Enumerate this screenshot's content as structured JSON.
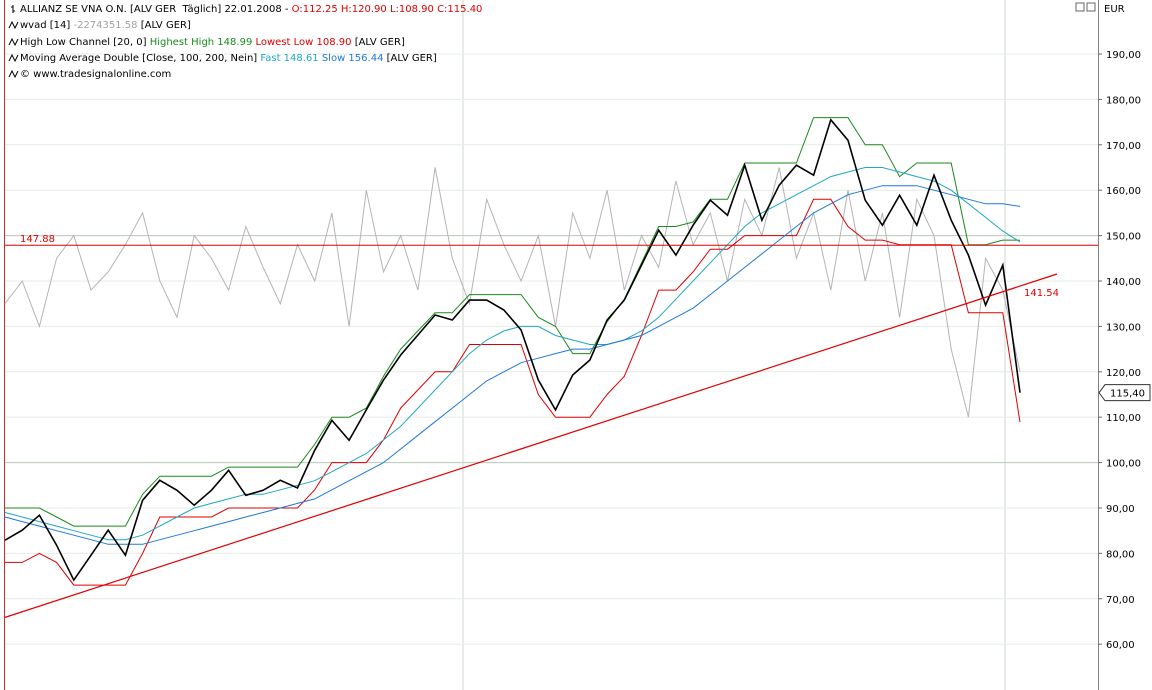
{
  "header": {
    "lines": [
      [
        {
          "text": "ALLIANZ SE VNA O.N. [ALV GER  Täglich] 22.01.2008 - ",
          "color": "#000000"
        },
        {
          "text": "O:112.25 H:120.90 L:108.90 C:115.40",
          "color": "#e00000"
        }
      ],
      [
        {
          "text": "wvad [14] ",
          "color": "#000000"
        },
        {
          "text": "-2274351.58",
          "color": "#a0a0a0"
        },
        {
          "text": " [ALV GER]",
          "color": "#000000"
        }
      ],
      [
        {
          "text": "High Low Channel [20, 0] ",
          "color": "#000000"
        },
        {
          "text": "Highest High 148.99",
          "color": "#1a8a1a"
        },
        {
          "text": " Lowest Low 108.90",
          "color": "#e00000"
        },
        {
          "text": " [ALV GER]",
          "color": "#000000"
        }
      ],
      [
        {
          "text": "Moving Average Double [Close, 100, 200, Nein] ",
          "color": "#000000"
        },
        {
          "text": "Fast 148.61",
          "color": "#20a8c0"
        },
        {
          "text": " Slow 156.44",
          "color": "#1e78d8"
        },
        {
          "text": " [ALV GER]",
          "color": "#000000"
        }
      ],
      [
        {
          "text": "© www.tradesignalonline.com",
          "color": "#000000"
        }
      ]
    ]
  },
  "chart_data": {
    "type": "line",
    "unit": "EUR",
    "ylim": [
      49.9,
      201.9
    ],
    "yticks": [
      {
        "value": 60,
        "label": "60,00"
      },
      {
        "value": 70,
        "label": "70,00"
      },
      {
        "value": 80,
        "label": "80,00"
      },
      {
        "value": 90,
        "label": "90,00"
      },
      {
        "value": 100,
        "label": "100,00"
      },
      {
        "value": 110,
        "label": "110,00"
      },
      {
        "value": 120,
        "label": "120,00"
      },
      {
        "value": 130,
        "label": "130,00"
      },
      {
        "value": 140,
        "label": "140,00"
      },
      {
        "value": 150,
        "label": "150,00"
      },
      {
        "value": 160,
        "label": "160,00"
      },
      {
        "value": 170,
        "label": "170,00"
      },
      {
        "value": 180,
        "label": "180,00"
      },
      {
        "value": 190,
        "label": "190,00"
      }
    ],
    "grid": true,
    "series": [
      {
        "name": "wvad",
        "color": "#b4b4b4",
        "values": [
          135,
          140,
          130,
          145,
          150,
          138,
          142,
          148,
          155,
          140,
          132,
          150,
          145,
          138,
          152,
          143,
          135,
          148,
          140,
          155,
          130,
          160,
          142,
          150,
          138,
          165,
          145,
          135,
          158,
          148,
          140,
          150,
          130,
          155,
          145,
          160,
          138,
          150,
          143,
          162,
          148,
          155,
          140,
          158,
          150,
          165,
          145,
          155,
          138,
          160,
          140,
          155,
          132,
          158,
          150,
          125,
          110,
          145,
          138,
          120
        ]
      },
      {
        "name": "Highest High",
        "color": "#1a8a1a",
        "values": [
          90,
          90,
          90,
          88,
          86,
          86,
          86,
          86,
          93,
          97,
          97,
          97,
          97,
          99,
          99,
          99,
          99,
          99,
          104,
          110,
          110,
          112,
          119,
          125,
          129,
          133,
          133,
          137,
          137,
          137,
          137,
          132,
          130,
          124,
          124,
          131,
          136,
          144,
          152,
          152,
          153,
          158,
          158,
          166,
          166,
          166,
          166,
          176,
          176,
          176,
          170,
          170,
          163,
          166,
          166,
          166,
          148,
          148,
          149,
          148.99
        ]
      },
      {
        "name": "Lowest Low",
        "color": "#e00000",
        "values": [
          78,
          78,
          80,
          78,
          73,
          73,
          73,
          73,
          80,
          88,
          88,
          88,
          88,
          90,
          90,
          90,
          90,
          90,
          94,
          100,
          100,
          100,
          105,
          112,
          116,
          120,
          120,
          126,
          126,
          126,
          126,
          115,
          110,
          110,
          110,
          115,
          119,
          128,
          138,
          138,
          142,
          147,
          147,
          150,
          150,
          150,
          150,
          158,
          158,
          152,
          149,
          149,
          148,
          148,
          148,
          148,
          133,
          133,
          133,
          108.9
        ]
      },
      {
        "name": "Fast",
        "color": "#20a8c0",
        "values": [
          89,
          88,
          87,
          86,
          85,
          84,
          83,
          83,
          84,
          86,
          88,
          90,
          91,
          92,
          93,
          93,
          94,
          95,
          96,
          98,
          100,
          102,
          105,
          108,
          112,
          116,
          120,
          124,
          127,
          129,
          130,
          130,
          128,
          127,
          126,
          126,
          127,
          129,
          132,
          136,
          140,
          144,
          148,
          152,
          155,
          157,
          159,
          161,
          163,
          164,
          165,
          165,
          164,
          163,
          162,
          160,
          157,
          154,
          151,
          148.61
        ]
      },
      {
        "name": "Slow",
        "color": "#1e78d8",
        "values": [
          88,
          87,
          86,
          85,
          84,
          83,
          82,
          82,
          82,
          83,
          84,
          85,
          86,
          87,
          88,
          89,
          90,
          91,
          92,
          94,
          96,
          98,
          100,
          103,
          106,
          109,
          112,
          115,
          118,
          120,
          122,
          123,
          124,
          125,
          125,
          126,
          127,
          128,
          130,
          132,
          134,
          137,
          140,
          143,
          146,
          149,
          152,
          155,
          157,
          159,
          160,
          161,
          161,
          161,
          160,
          159,
          158,
          157,
          157,
          156.44
        ]
      },
      {
        "name": "Close",
        "color": "#000000",
        "values": [
          82.9,
          85.1,
          88.4,
          81.8,
          74.1,
          79.6,
          85.1,
          79.6,
          91.7,
          96.1,
          93.9,
          90.6,
          93.9,
          98.3,
          92.8,
          93.9,
          96.1,
          94.4,
          102.7,
          109.3,
          104.9,
          111.6,
          118.2,
          123.7,
          128.1,
          132.5,
          131.4,
          135.8,
          135.8,
          133.6,
          129.2,
          118.2,
          111.6,
          119.3,
          122.6,
          131.4,
          135.8,
          143.5,
          151.2,
          145.7,
          152.3,
          157.8,
          154.5,
          165.5,
          153.4,
          161.1,
          165.5,
          163.3,
          175.5,
          171,
          157.8,
          152.3,
          158.9,
          152.3,
          163.3,
          153.4,
          145.7,
          134.7,
          143.5,
          115.4
        ]
      }
    ],
    "hline": {
      "value": 147.88,
      "label": "147.88",
      "color": "#e00000"
    },
    "trendline": {
      "start": 65.9,
      "end": 141.54,
      "label": "141.54",
      "color": "#e00000"
    },
    "last": {
      "value": 115.4,
      "label": "115,40"
    }
  }
}
